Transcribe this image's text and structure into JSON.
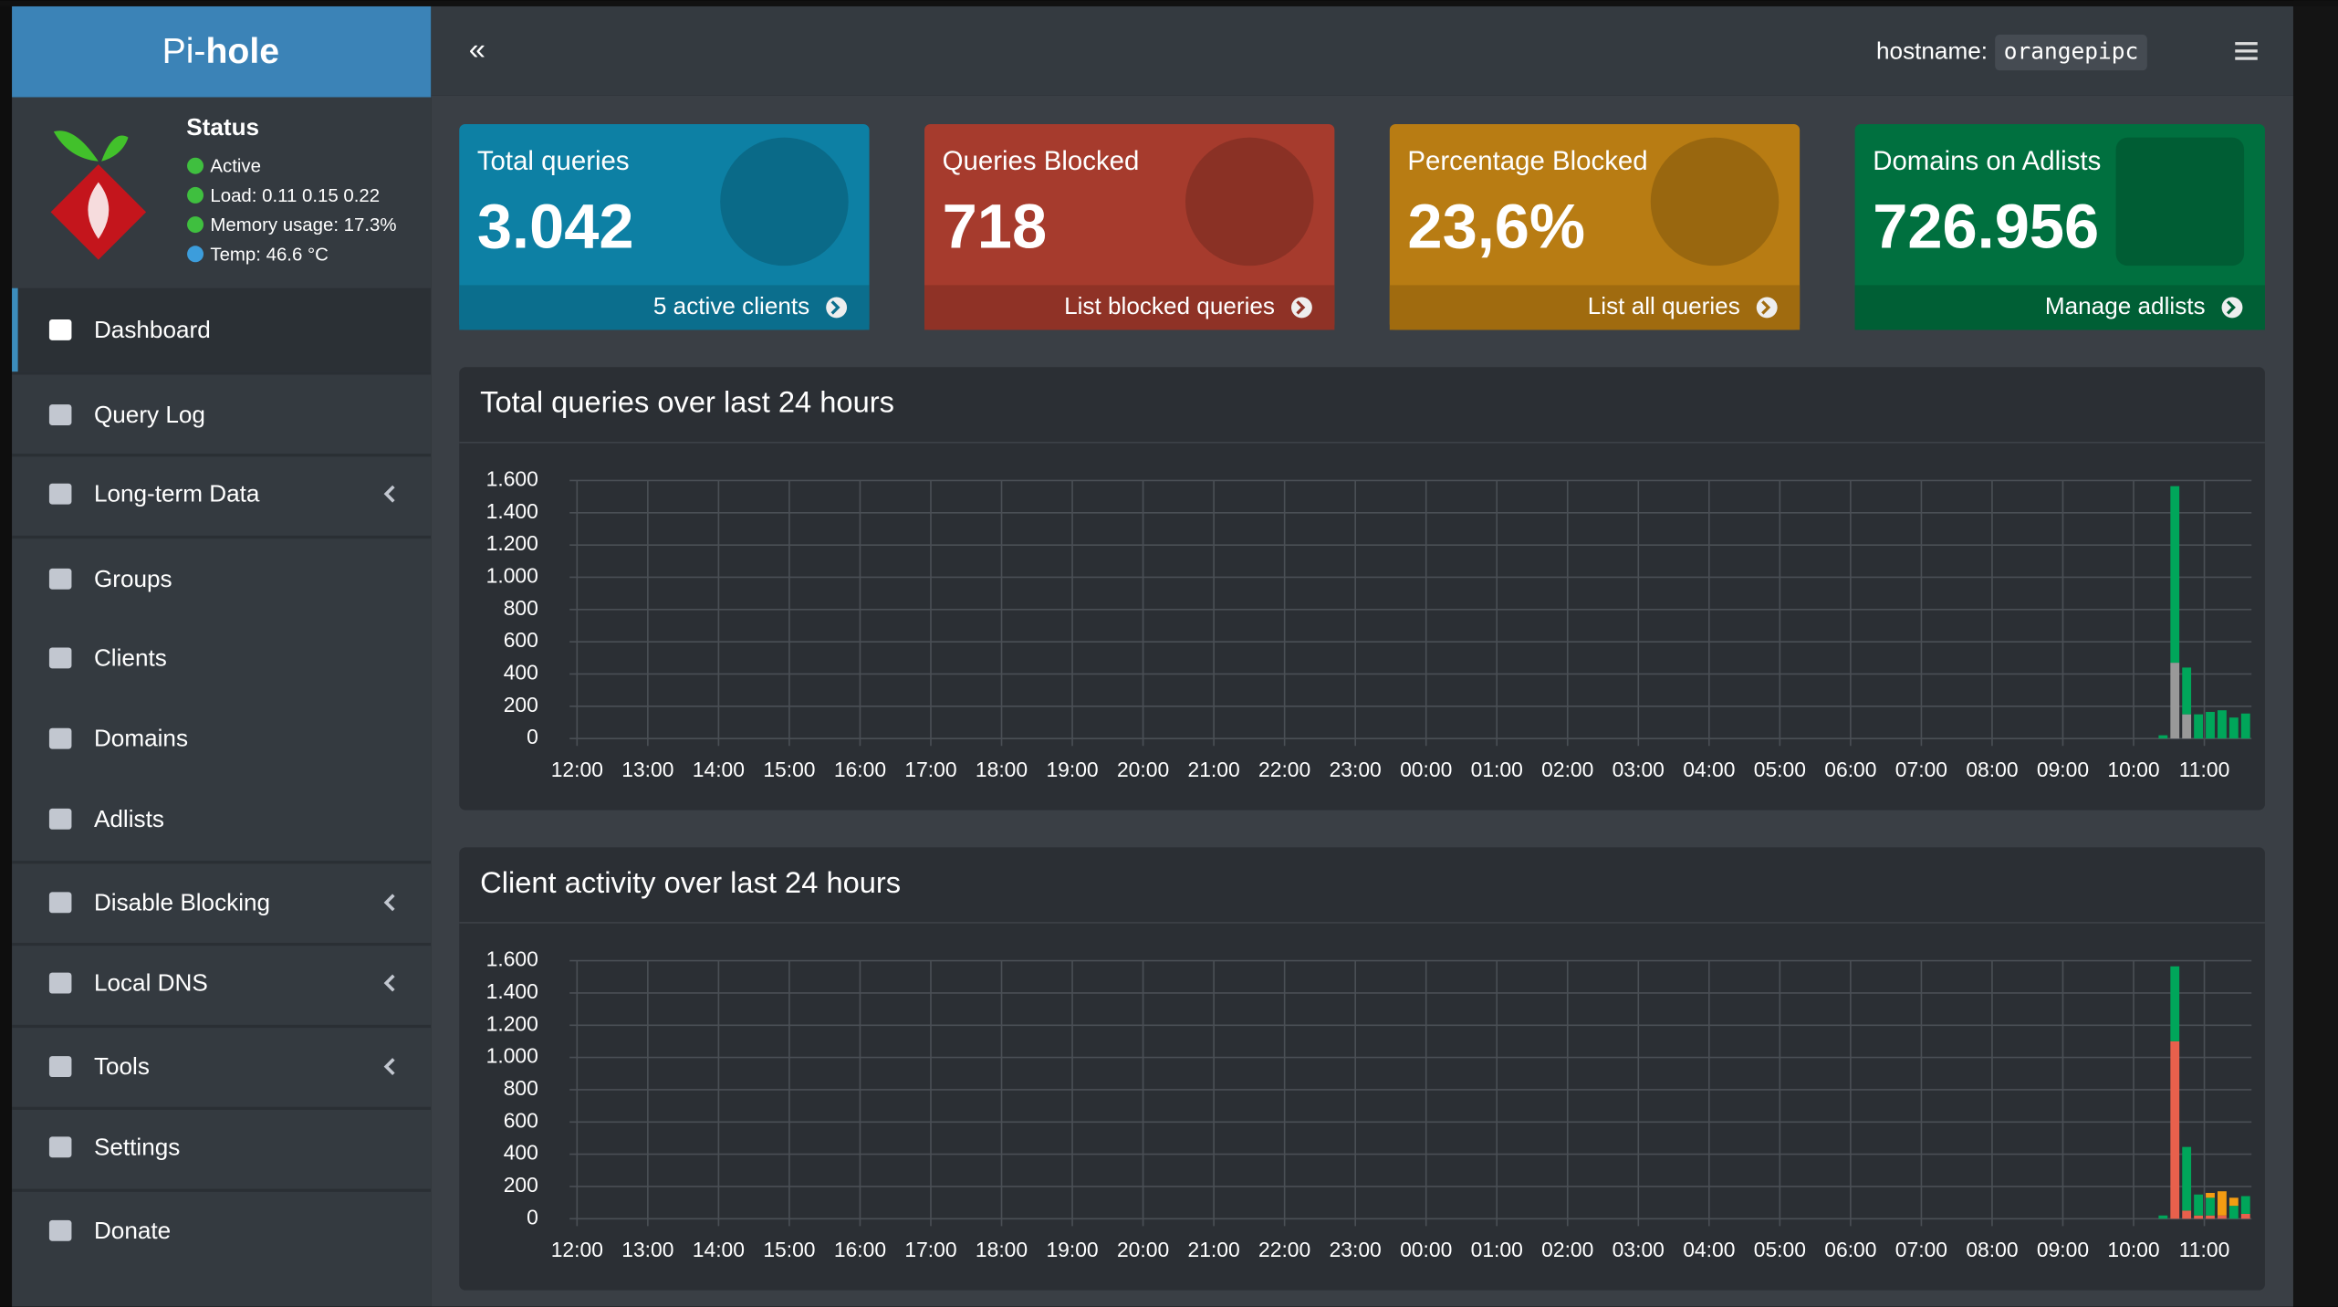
{
  "header": {
    "logo_light": "Pi-",
    "logo_bold": "hole",
    "hostname_label": "hostname:",
    "hostname": "orangepipc"
  },
  "status": {
    "title": "Status",
    "items": [
      "Active",
      "Load:  0.11  0.15  0.22",
      "Memory usage:  17.3%",
      "Temp: 46.6 °C"
    ]
  },
  "menu": [
    "Dashboard",
    "Query Log",
    "Long-term Data",
    "Groups",
    "Clients",
    "Domains",
    "Adlists",
    "Disable Blocking",
    "Local DNS",
    "Tools",
    "Settings",
    "Donate"
  ],
  "cards": [
    {
      "title": "Total queries",
      "value": "3.042",
      "link": "5 active clients"
    },
    {
      "title": "Queries Blocked",
      "value": "718",
      "link": "List blocked queries"
    },
    {
      "title": "Percentage Blocked",
      "value": "23,6%",
      "link": "List all queries"
    },
    {
      "title": "Domains on Adlists",
      "value": "726.956",
      "link": "Manage adlists"
    }
  ],
  "chart_data": [
    {
      "type": "bar",
      "title": "Total queries over last 24 hours",
      "stacked": true,
      "x": [
        "10:20",
        "10:30",
        "10:40",
        "10:50",
        "11:00",
        "11:10",
        "11:20",
        "11:30"
      ],
      "series": [
        {
          "color": "#999999",
          "values": [
            0,
            470,
            150,
            0,
            0,
            0,
            0,
            0
          ]
        },
        {
          "color": "#00a65a",
          "values": [
            20,
            1095,
            290,
            150,
            165,
            175,
            130,
            155
          ]
        }
      ],
      "xlim": [
        "12:00",
        "11:40"
      ],
      "xticks": [
        "12:00",
        "13:00",
        "14:00",
        "15:00",
        "16:00",
        "17:00",
        "18:00",
        "19:00",
        "20:00",
        "21:00",
        "22:00",
        "23:00",
        "00:00",
        "01:00",
        "02:00",
        "03:00",
        "04:00",
        "05:00",
        "06:00",
        "07:00",
        "08:00",
        "09:00",
        "10:00",
        "11:00"
      ],
      "ylim": [
        0,
        1600
      ],
      "yticks": [
        0,
        200,
        400,
        600,
        800,
        {
          "value": 1000,
          "label": "1.000"
        },
        {
          "value": 1200,
          "label": "1.200"
        },
        {
          "value": 1400,
          "label": "1.400"
        },
        {
          "value": 1600,
          "label": "1.600"
        }
      ],
      "grid": true
    },
    {
      "type": "bar",
      "title": "Client activity over last 24 hours",
      "stacked": true,
      "x": [
        "10:20",
        "10:30",
        "10:40",
        "10:50",
        "11:00",
        "11:10",
        "11:20",
        "11:30"
      ],
      "series": [
        {
          "color": "#e8604c",
          "values": [
            0,
            1100,
            50,
            20,
            20,
            20,
            0,
            30
          ]
        },
        {
          "color": "#00a65a",
          "values": [
            20,
            465,
            395,
            130,
            110,
            0,
            80,
            110
          ]
        },
        {
          "color": "#f39c12",
          "values": [
            0,
            0,
            0,
            0,
            30,
            150,
            50,
            0
          ]
        }
      ],
      "xlim": [
        "12:00",
        "11:40"
      ],
      "xticks": [
        "12:00",
        "13:00",
        "14:00",
        "15:00",
        "16:00",
        "17:00",
        "18:00",
        "19:00",
        "20:00",
        "21:00",
        "22:00",
        "23:00",
        "00:00",
        "01:00",
        "02:00",
        "03:00",
        "04:00",
        "05:00",
        "06:00",
        "07:00",
        "08:00",
        "09:00",
        "10:00",
        "11:00"
      ],
      "ylim": [
        0,
        1600
      ],
      "yticks": [
        0,
        200,
        400,
        600,
        800,
        {
          "value": 1000,
          "label": "1.000"
        },
        {
          "value": 1200,
          "label": "1.200"
        },
        {
          "value": 1400,
          "label": "1.400"
        },
        {
          "value": 1600,
          "label": "1.600"
        }
      ],
      "grid": true
    }
  ]
}
